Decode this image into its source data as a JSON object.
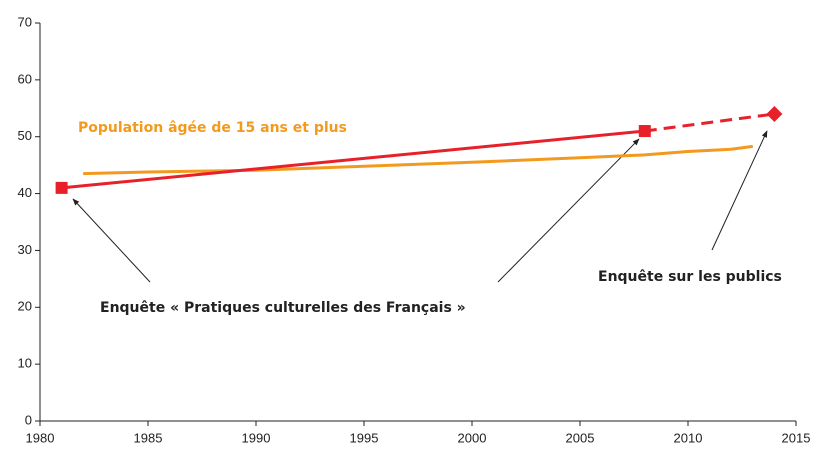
{
  "chart_data": {
    "type": "line",
    "xlim": [
      1980,
      2015
    ],
    "xticks": [
      1980,
      1985,
      1990,
      1995,
      2000,
      2005,
      2010,
      2015
    ],
    "ylim": [
      0,
      70
    ],
    "yticks": [
      0,
      10,
      20,
      30,
      40,
      50,
      60,
      70
    ],
    "series": [
      {
        "name": "Population âgée de 15 ans et plus",
        "color": "#f39a1e",
        "x": [
          1982,
          1985,
          1990,
          1995,
          2000,
          2005,
          2008,
          2010,
          2012,
          2013
        ],
        "values": [
          43.5,
          43.8,
          44.1,
          44.8,
          45.5,
          46.3,
          46.8,
          47.4,
          47.8,
          48.3
        ]
      },
      {
        "color": "#e8202a",
        "x": [
          1981,
          2008,
          2014
        ],
        "values": [
          41,
          51,
          54
        ],
        "markers": [
          "square",
          "square",
          "diamond"
        ],
        "segment_styles": [
          "solid",
          "dashed"
        ]
      }
    ],
    "annotations": [
      "Enquête « Pratiques culturelles des Français »",
      "Enquête sur les publics"
    ]
  }
}
